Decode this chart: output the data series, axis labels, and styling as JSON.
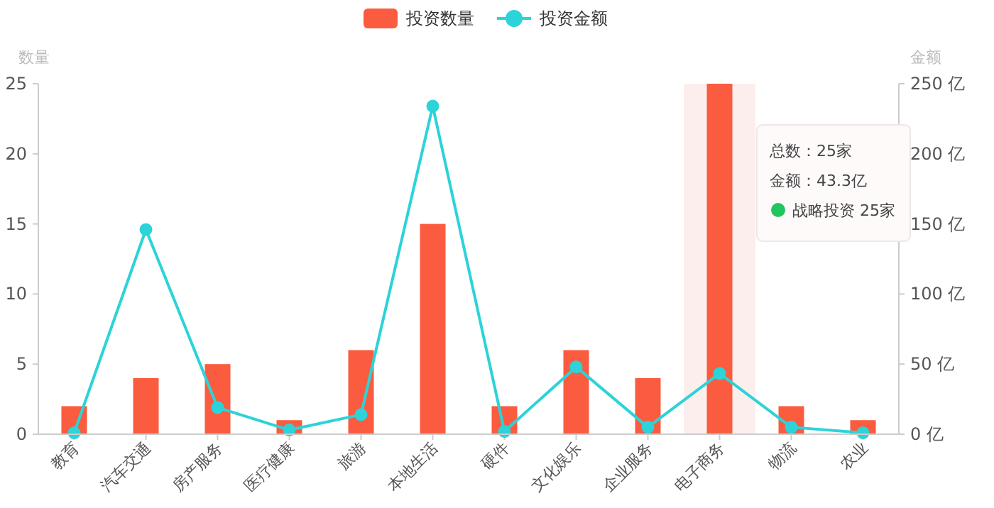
{
  "chart_data": {
    "type": "bar",
    "categories": [
      "教育",
      "汽车交通",
      "房产服务",
      "医疗健康",
      "旅游",
      "本地生活",
      "硬件",
      "文化娱乐",
      "企业服务",
      "电子商务",
      "物流",
      "农业"
    ],
    "series": [
      {
        "name": "投资数量",
        "color": "#fb5b3f",
        "values": [
          2,
          4,
          5,
          1,
          6,
          15,
          2,
          6,
          4,
          25,
          2,
          1
        ]
      },
      {
        "name": "投资金额",
        "type": "line",
        "axis": "y2",
        "color": "#2cd3d8",
        "marker": "circle",
        "values": [
          1,
          146,
          19,
          3,
          14,
          234,
          2,
          48,
          5,
          43.3,
          5,
          1
        ]
      }
    ],
    "ylabel": "数量",
    "y2label": "金额",
    "ylim": [
      0,
      25
    ],
    "yticks": [
      0,
      5,
      10,
      15,
      20,
      25
    ],
    "y2lim": [
      0,
      250
    ],
    "y2ticks": [
      {
        "value": 0,
        "label": "0 亿"
      },
      {
        "value": 50,
        "label": "50 亿"
      },
      {
        "value": 100,
        "label": "100 亿"
      },
      {
        "value": 150,
        "label": "150 亿"
      },
      {
        "value": 200,
        "label": "200 亿"
      },
      {
        "value": 250,
        "label": "250 亿"
      }
    ],
    "bands": [
      {
        "axis": "x",
        "from": "电子商务",
        "to": "电子商务",
        "color": "#fdeeee"
      }
    ],
    "annotations": [
      "总数：25家",
      "金额：43.3亿",
      "战略投资 25家"
    ],
    "legend": "top",
    "grid": false
  }
}
